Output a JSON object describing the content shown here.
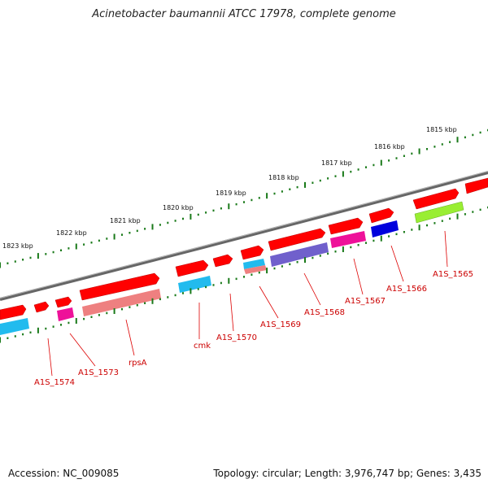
{
  "title": "Acinetobacter baumannii ATCC 17978, complete genome",
  "footer": {
    "accession": "Accession: NC_009085",
    "summary": "Topology: circular; Length: 3,976,747 bp; Genes: 3,435"
  },
  "kbp_labels": [
    "1815 kbp",
    "1816 kbp",
    "1817 kbp",
    "1818 kbp",
    "1819 kbp",
    "1820 kbp",
    "1821 kbp",
    "1822 kbp",
    "1823 kbp"
  ],
  "gene_labels": [
    "A1S_1565",
    "A1S_1566",
    "A1S_1567",
    "A1S_1568",
    "A1S_1569",
    "A1S_1570",
    "cmk",
    "rpsA",
    "A1S_1573",
    "A1S_1574"
  ],
  "colors": {
    "backbone": "#808080",
    "gene_arrow": "#ff0000",
    "tick": "#1a7a1a",
    "label": "#cc0000",
    "cyan": "#22bbee",
    "magenta": "#ee1199",
    "salmon": "#ee8080",
    "purple": "#7060cc",
    "blue": "#0000dd",
    "green": "#99ee33"
  }
}
